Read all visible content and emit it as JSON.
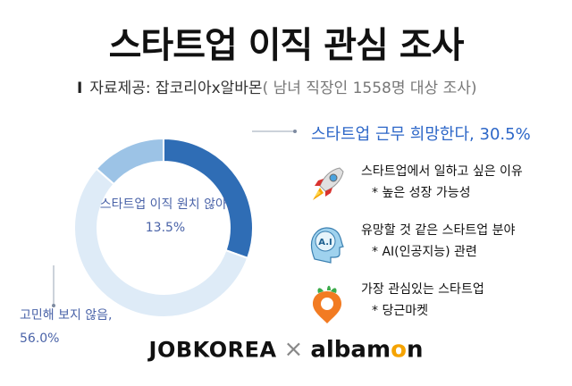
{
  "title": "스타트업 이직 관심 조사",
  "source": {
    "prefix": "I",
    "label": "자료제공: 잡코리아x알바몬",
    "note": "( 남녀 직장인 1558명 대상 조사)"
  },
  "chart_data": {
    "type": "pie",
    "categories": [
      "스타트업 근무 희망한다",
      "고민해 보지 않음",
      "스타트업 이직 원치 않아"
    ],
    "values": [
      30.5,
      56.0,
      13.5
    ],
    "colors": [
      "#2f6db5",
      "#deebf7",
      "#9cc3e6"
    ],
    "labels": {
      "main": "스타트업 근무 희망한다, 30.5%",
      "outer_line1": "고민해 보지 않음,",
      "outer_line2": "56.0%",
      "inner_line1": "스타트업 이직 원치 않아,",
      "inner_line2": "13.5%"
    }
  },
  "info": [
    {
      "icon": "rocket-icon",
      "title": "스타트업에서 일하고 싶은 이유",
      "sub": "* 높은 성장 가능성"
    },
    {
      "icon": "ai-head-icon",
      "title": "유망할 것 같은 스타트업 분야",
      "sub": "* AI(인공지능) 관련",
      "icon_text": "A.I"
    },
    {
      "icon": "carrot-icon",
      "title": "가장 관심있는 스타트업",
      "sub": "* 당근마켓"
    }
  ],
  "brand": {
    "left": "JOBKOREA",
    "sep": "×",
    "right_a": "alba",
    "right_b": "m",
    "right_o": "o",
    "right_c": "n"
  }
}
